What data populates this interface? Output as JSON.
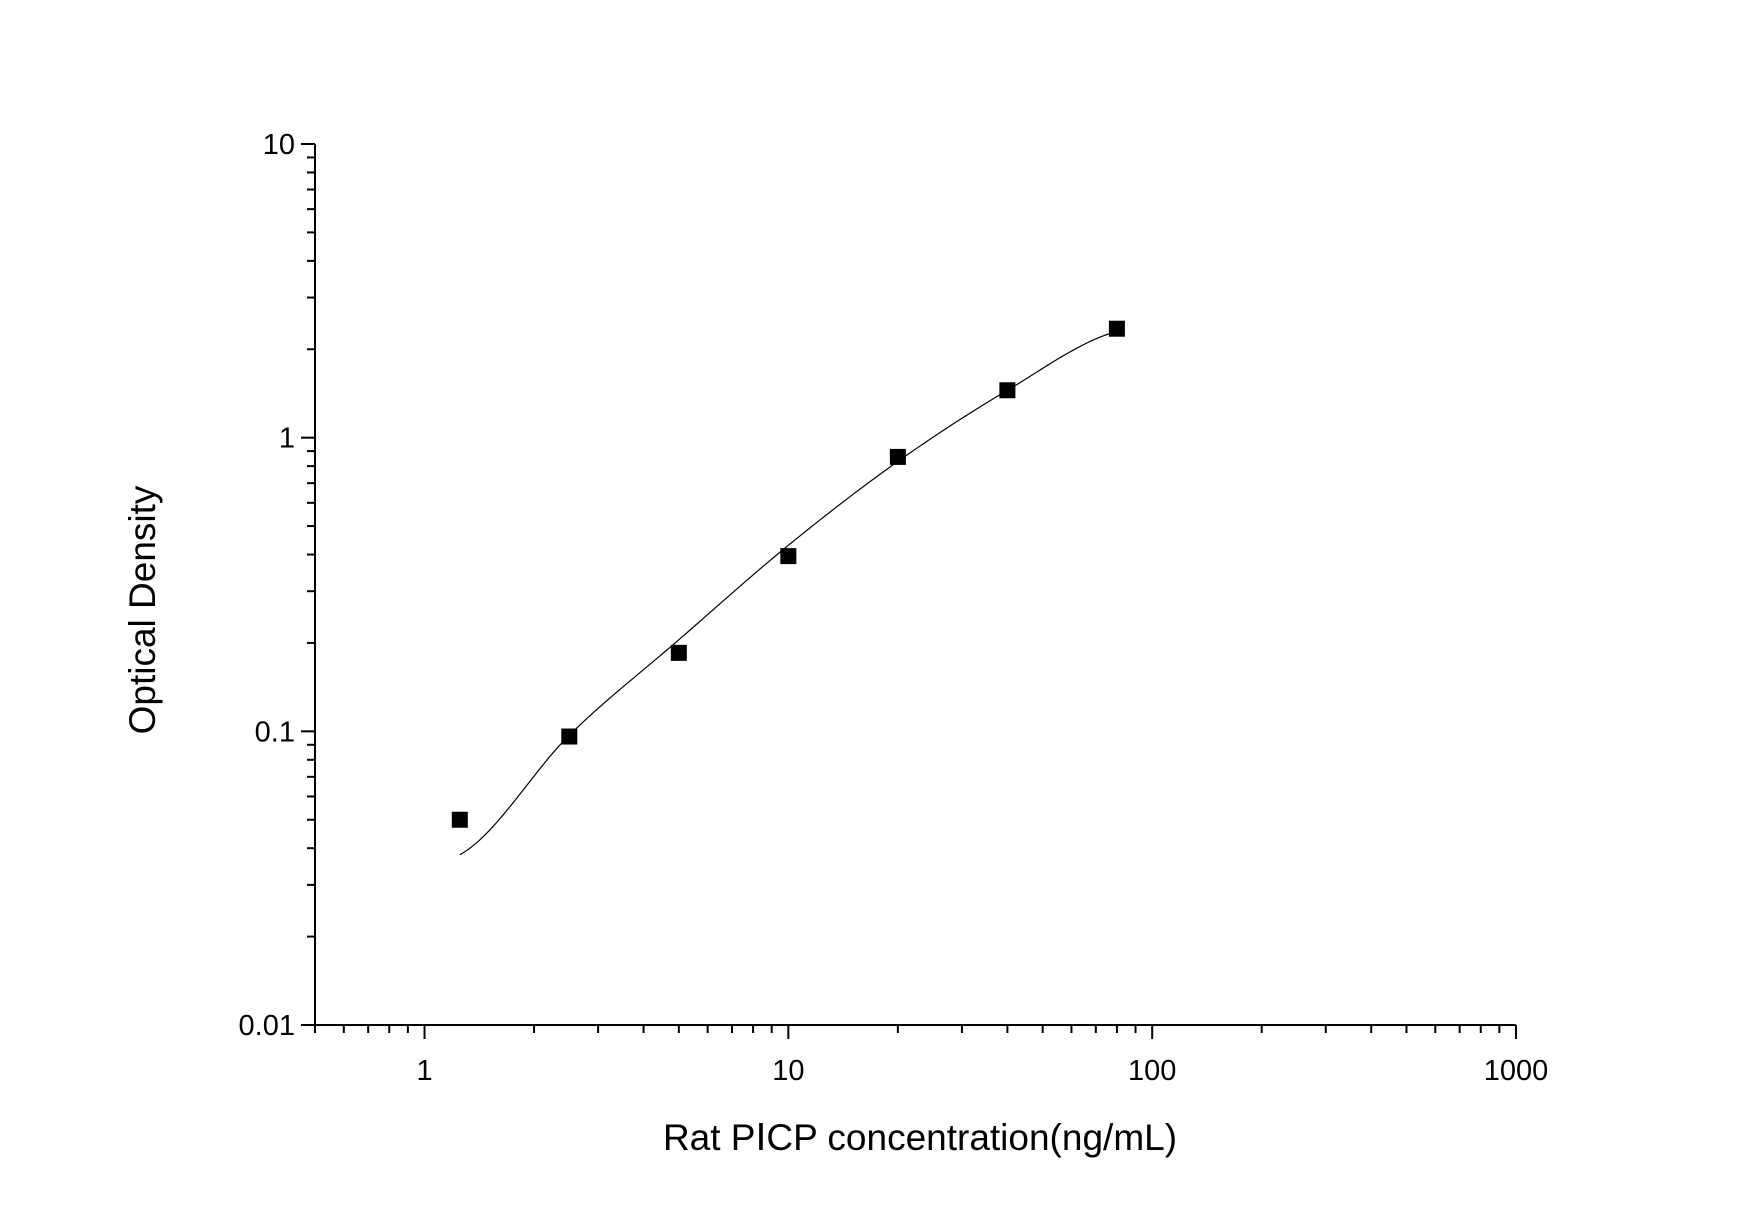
{
  "chart_data": {
    "type": "scatter",
    "title": "",
    "xlabel": "Rat PⅠCP concentration(ng/mL)",
    "ylabel": "Optical Density",
    "x_scale": "log",
    "y_scale": "log",
    "xlim": [
      0.5,
      1000
    ],
    "ylim": [
      0.01,
      10
    ],
    "x_tick_labels": [
      "1",
      "10",
      "100",
      "1000"
    ],
    "y_tick_labels": [
      "0.01",
      "0.1",
      "1",
      "10"
    ],
    "grid": false,
    "legend": "none",
    "series": [
      {
        "marker": "square",
        "color": "#000000",
        "points": [
          {
            "x": 1.25,
            "y": 0.05
          },
          {
            "x": 2.5,
            "y": 0.096
          },
          {
            "x": 5,
            "y": 0.185
          },
          {
            "x": 10,
            "y": 0.395
          },
          {
            "x": 20,
            "y": 0.86
          },
          {
            "x": 40,
            "y": 1.45
          },
          {
            "x": 80,
            "y": 2.35
          }
        ]
      }
    ],
    "fit_curve": {
      "color": "#000000",
      "x_range": [
        1.25,
        80
      ],
      "points": [
        {
          "x": 1.25,
          "y": 0.038
        },
        {
          "x": 2.5,
          "y": 0.097
        },
        {
          "x": 5,
          "y": 0.205
        },
        {
          "x": 10,
          "y": 0.43
        },
        {
          "x": 20,
          "y": 0.83
        },
        {
          "x": 40,
          "y": 1.45
        },
        {
          "x": 80,
          "y": 2.3
        }
      ]
    }
  }
}
